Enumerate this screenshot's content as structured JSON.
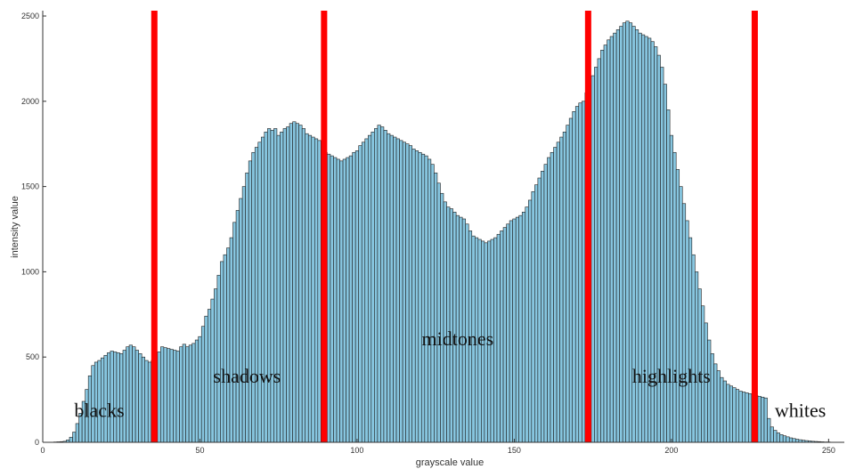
{
  "chart_data": {
    "type": "bar",
    "title": "",
    "xlabel": "grayscale value",
    "ylabel": "intensity value",
    "xlim": [
      0,
      255
    ],
    "ylim": [
      0,
      2500
    ],
    "xticks": [
      0,
      50,
      100,
      150,
      200,
      250
    ],
    "yticks": [
      0,
      500,
      1000,
      1500,
      2000,
      2500
    ],
    "grid": false,
    "bar_color": "#87c6e0",
    "bar_edge_color": "#1e1e1e",
    "divider_color": "#ff0000",
    "dividers": [
      35.5,
      89.5,
      173.5,
      226.5
    ],
    "regions": [
      {
        "label": "blacks",
        "x": 18,
        "y": 150
      },
      {
        "label": "shadows",
        "x": 65,
        "y": 350
      },
      {
        "label": "midtones",
        "x": 132,
        "y": 570
      },
      {
        "label": "highlights",
        "x": 200,
        "y": 350
      },
      {
        "label": "whites",
        "x": 241,
        "y": 150
      }
    ],
    "x": [
      0,
      1,
      2,
      3,
      4,
      5,
      6,
      7,
      8,
      9,
      10,
      11,
      12,
      13,
      14,
      15,
      16,
      17,
      18,
      19,
      20,
      21,
      22,
      23,
      24,
      25,
      26,
      27,
      28,
      29,
      30,
      31,
      32,
      33,
      34,
      35,
      36,
      37,
      38,
      39,
      40,
      41,
      42,
      43,
      44,
      45,
      46,
      47,
      48,
      49,
      50,
      51,
      52,
      53,
      54,
      55,
      56,
      57,
      58,
      59,
      60,
      61,
      62,
      63,
      64,
      65,
      66,
      67,
      68,
      69,
      70,
      71,
      72,
      73,
      74,
      75,
      76,
      77,
      78,
      79,
      80,
      81,
      82,
      83,
      84,
      85,
      86,
      87,
      88,
      89,
      90,
      91,
      92,
      93,
      94,
      95,
      96,
      97,
      98,
      99,
      100,
      101,
      102,
      103,
      104,
      105,
      106,
      107,
      108,
      109,
      110,
      111,
      112,
      113,
      114,
      115,
      116,
      117,
      118,
      119,
      120,
      121,
      122,
      123,
      124,
      125,
      126,
      127,
      128,
      129,
      130,
      131,
      132,
      133,
      134,
      135,
      136,
      137,
      138,
      139,
      140,
      141,
      142,
      143,
      144,
      145,
      146,
      147,
      148,
      149,
      150,
      151,
      152,
      153,
      154,
      155,
      156,
      157,
      158,
      159,
      160,
      161,
      162,
      163,
      164,
      165,
      166,
      167,
      168,
      169,
      170,
      171,
      172,
      173,
      174,
      175,
      176,
      177,
      178,
      179,
      180,
      181,
      182,
      183,
      184,
      185,
      186,
      187,
      188,
      189,
      190,
      191,
      192,
      193,
      194,
      195,
      196,
      197,
      198,
      199,
      200,
      201,
      202,
      203,
      204,
      205,
      206,
      207,
      208,
      209,
      210,
      211,
      212,
      213,
      214,
      215,
      216,
      217,
      218,
      219,
      220,
      221,
      222,
      223,
      224,
      225,
      226,
      227,
      228,
      229,
      230,
      231,
      232,
      233,
      234,
      235,
      236,
      237,
      238,
      239,
      240,
      241,
      242,
      243,
      244,
      245,
      246,
      247,
      248,
      249,
      250,
      251,
      252,
      253,
      254,
      255
    ],
    "values": [
      0,
      0,
      0,
      0,
      2,
      3,
      4,
      6,
      14,
      30,
      60,
      110,
      170,
      240,
      310,
      390,
      450,
      470,
      480,
      495,
      510,
      525,
      535,
      530,
      525,
      520,
      540,
      560,
      570,
      560,
      540,
      520,
      500,
      480,
      470,
      480,
      500,
      530,
      560,
      555,
      550,
      545,
      540,
      535,
      560,
      575,
      560,
      570,
      580,
      600,
      620,
      680,
      740,
      780,
      840,
      900,
      980,
      1060,
      1100,
      1140,
      1200,
      1290,
      1360,
      1430,
      1500,
      1580,
      1650,
      1700,
      1730,
      1760,
      1790,
      1820,
      1840,
      1830,
      1840,
      1800,
      1820,
      1840,
      1850,
      1870,
      1880,
      1870,
      1860,
      1840,
      1810,
      1800,
      1790,
      1780,
      1770,
      1760,
      1700,
      1690,
      1680,
      1670,
      1660,
      1650,
      1660,
      1670,
      1680,
      1700,
      1710,
      1740,
      1760,
      1780,
      1800,
      1820,
      1840,
      1860,
      1850,
      1830,
      1810,
      1800,
      1790,
      1780,
      1770,
      1760,
      1750,
      1740,
      1720,
      1710,
      1700,
      1690,
      1680,
      1660,
      1630,
      1580,
      1520,
      1460,
      1410,
      1380,
      1370,
      1350,
      1330,
      1320,
      1310,
      1280,
      1240,
      1210,
      1200,
      1190,
      1180,
      1170,
      1180,
      1190,
      1200,
      1220,
      1240,
      1260,
      1280,
      1300,
      1310,
      1320,
      1330,
      1350,
      1380,
      1420,
      1470,
      1510,
      1550,
      1590,
      1630,
      1670,
      1700,
      1730,
      1760,
      1790,
      1820,
      1860,
      1900,
      1940,
      1970,
      1990,
      2000,
      2050,
      2100,
      2150,
      2200,
      2250,
      2300,
      2330,
      2360,
      2380,
      2400,
      2420,
      2440,
      2460,
      2470,
      2460,
      2440,
      2420,
      2400,
      2390,
      2380,
      2370,
      2350,
      2320,
      2270,
      2200,
      2100,
      1950,
      1800,
      1700,
      1600,
      1500,
      1400,
      1300,
      1200,
      1100,
      1000,
      900,
      800,
      700,
      600,
      520,
      460,
      420,
      380,
      360,
      340,
      330,
      320,
      310,
      300,
      295,
      290,
      285,
      280,
      275,
      270,
      265,
      260,
      140,
      90,
      70,
      55,
      45,
      38,
      32,
      26,
      22,
      18,
      15,
      12,
      10,
      8,
      6,
      5,
      4,
      3,
      2,
      2,
      1,
      1,
      1,
      0,
      0
    ]
  }
}
